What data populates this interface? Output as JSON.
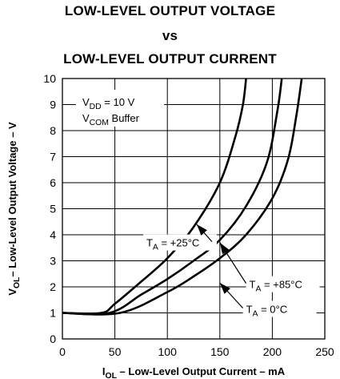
{
  "chart_data": {
    "type": "line",
    "title": [
      "LOW-LEVEL OUTPUT VOLTAGE",
      "vs",
      "LOW-LEVEL OUTPUT CURRENT"
    ],
    "xlabel": {
      "main": "I",
      "sub": "OL",
      "rest": " – Low-Level Output Current – mA"
    },
    "ylabel": {
      "main": "V",
      "sub": "OL",
      "rest": "– Low-Level Output Voltage – V"
    },
    "xlim": [
      0,
      250
    ],
    "ylim": [
      0,
      10
    ],
    "x_ticks": [
      0,
      50,
      100,
      150,
      200,
      250
    ],
    "y_ticks": [
      0,
      1,
      2,
      3,
      4,
      5,
      6,
      7,
      8,
      9,
      10
    ],
    "grid": true,
    "conditions": [
      {
        "main": "V",
        "sub": "DD",
        "rest": " = 10 V"
      },
      {
        "main": "V",
        "sub": "COM",
        "rest": " Buffer"
      }
    ],
    "series": [
      {
        "name": "T_A = +25°C",
        "label": {
          "main": "T",
          "sub": "A",
          "rest": " = +25°C"
        },
        "x": [
          0,
          37,
          50,
          75,
          100,
          125,
          150,
          165,
          172,
          175
        ],
        "y": [
          1,
          1,
          1.35,
          2.2,
          3.1,
          4.3,
          6.0,
          7.8,
          9.0,
          10
        ]
      },
      {
        "name": "T_A = +85°C",
        "label": {
          "main": "T",
          "sub": "A",
          "rest": " = +85°C"
        },
        "x": [
          0,
          45,
          75,
          100,
          125,
          150,
          175,
          195,
          205,
          209
        ],
        "y": [
          1,
          1,
          1.7,
          2.3,
          3.0,
          3.8,
          5.1,
          6.8,
          8.8,
          10
        ]
      },
      {
        "name": "T_A = 0°C",
        "label": {
          "main": "T",
          "sub": "A",
          "rest": " = 0°C"
        },
        "x": [
          0,
          55,
          100,
          125,
          150,
          175,
          200,
          215,
          223,
          228
        ],
        "y": [
          1,
          1,
          1.8,
          2.4,
          3.1,
          4.0,
          5.4,
          6.9,
          8.6,
          10
        ]
      }
    ],
    "annotations": [
      {
        "series": 0,
        "text_at": [
          80,
          3.55
        ],
        "arrow_to": [
          128,
          4.4
        ]
      },
      {
        "series": 1,
        "text_at": [
          178,
          1.95
        ],
        "arrow_to": [
          150,
          3.7
        ]
      },
      {
        "series": 2,
        "text_at": [
          175,
          1.0
        ],
        "arrow_to": [
          150,
          2.15
        ]
      }
    ]
  }
}
